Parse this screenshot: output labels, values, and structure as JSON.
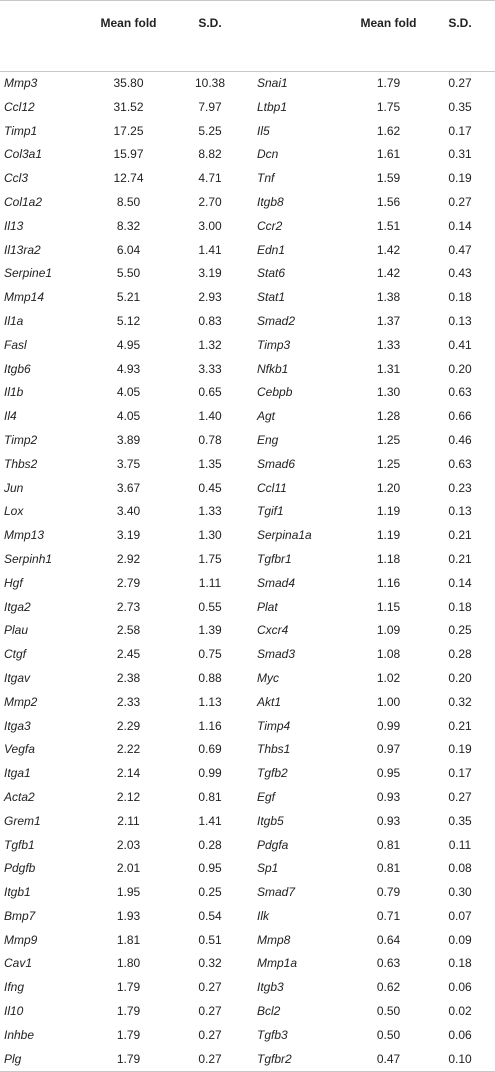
{
  "headers": {
    "col1": "",
    "mean_fold_1": "Mean fold",
    "sd_1": "S.D.",
    "col4": "",
    "mean_fold_2": "Mean fold",
    "sd_2": "S.D."
  },
  "rows": [
    [
      "Mmp3",
      "35.80",
      "10.38",
      "Snai1",
      "1.79",
      "0.27"
    ],
    [
      "Ccl12",
      "31.52",
      "7.97",
      "Ltbp1",
      "1.75",
      "0.35"
    ],
    [
      "Timp1",
      "17.25",
      "5.25",
      "Il5",
      "1.62",
      "0.17"
    ],
    [
      "Col3a1",
      "15.97",
      "8.82",
      "Dcn",
      "1.61",
      "0.31"
    ],
    [
      "Ccl3",
      "12.74",
      "4.71",
      "Tnf",
      "1.59",
      "0.19"
    ],
    [
      "Col1a2",
      "8.50",
      "2.70",
      "Itgb8",
      "1.56",
      "0.27"
    ],
    [
      "Il13",
      "8.32",
      "3.00",
      "Ccr2",
      "1.51",
      "0.14"
    ],
    [
      "Il13ra2",
      "6.04",
      "1.41",
      "Edn1",
      "1.42",
      "0.47"
    ],
    [
      "Serpine1",
      "5.50",
      "3.19",
      "Stat6",
      "1.42",
      "0.43"
    ],
    [
      "Mmp14",
      "5.21",
      "2.93",
      "Stat1",
      "1.38",
      "0.18"
    ],
    [
      "Il1a",
      "5.12",
      "0.83",
      "Smad2",
      "1.37",
      "0.13"
    ],
    [
      "Fasl",
      "4.95",
      "1.32",
      "Timp3",
      "1.33",
      "0.41"
    ],
    [
      "Itgb6",
      "4.93",
      "3.33",
      "Nfkb1",
      "1.31",
      "0.20"
    ],
    [
      "Il1b",
      "4.05",
      "0.65",
      "Cebpb",
      "1.30",
      "0.63"
    ],
    [
      "Il4",
      "4.05",
      "1.40",
      "Agt",
      "1.28",
      "0.66"
    ],
    [
      "Timp2",
      "3.89",
      "0.78",
      "Eng",
      "1.25",
      "0.46"
    ],
    [
      "Thbs2",
      "3.75",
      "1.35",
      "Smad6",
      "1.25",
      "0.63"
    ],
    [
      "Jun",
      "3.67",
      "0.45",
      "Ccl11",
      "1.20",
      "0.23"
    ],
    [
      "Lox",
      "3.40",
      "1.33",
      "Tgif1",
      "1.19",
      "0.13"
    ],
    [
      "Mmp13",
      "3.19",
      "1.30",
      "Serpina1a",
      "1.19",
      "0.21"
    ],
    [
      "Serpinh1",
      "2.92",
      "1.75",
      "Tgfbr1",
      "1.18",
      "0.21"
    ],
    [
      "Hgf",
      "2.79",
      "1.11",
      "Smad4",
      "1.16",
      "0.14"
    ],
    [
      "Itga2",
      "2.73",
      "0.55",
      "Plat",
      "1.15",
      "0.18"
    ],
    [
      "Plau",
      "2.58",
      "1.39",
      "Cxcr4",
      "1.09",
      "0.25"
    ],
    [
      "Ctgf",
      "2.45",
      "0.75",
      "Smad3",
      "1.08",
      "0.28"
    ],
    [
      "Itgav",
      "2.38",
      "0.88",
      "Myc",
      "1.02",
      "0.20"
    ],
    [
      "Mmp2",
      "2.33",
      "1.13",
      "Akt1",
      "1.00",
      "0.32"
    ],
    [
      "Itga3",
      "2.29",
      "1.16",
      "Timp4",
      "0.99",
      "0.21"
    ],
    [
      "Vegfa",
      "2.22",
      "0.69",
      "Thbs1",
      "0.97",
      "0.19"
    ],
    [
      "Itga1",
      "2.14",
      "0.99",
      "Tgfb2",
      "0.95",
      "0.17"
    ],
    [
      "Acta2",
      "2.12",
      "0.81",
      "Egf",
      "0.93",
      "0.27"
    ],
    [
      "Grem1",
      "2.11",
      "1.41",
      "Itgb5",
      "0.93",
      "0.35"
    ],
    [
      "Tgfb1",
      "2.03",
      "0.28",
      "Pdgfa",
      "0.81",
      "0.11"
    ],
    [
      "Pdgfb",
      "2.01",
      "0.95",
      "Sp1",
      "0.81",
      "0.08"
    ],
    [
      "Itgb1",
      "1.95",
      "0.25",
      "Smad7",
      "0.79",
      "0.30"
    ],
    [
      "Bmp7",
      "1.93",
      "0.54",
      "Ilk",
      "0.71",
      "0.07"
    ],
    [
      "Mmp9",
      "1.81",
      "0.51",
      "Mmp8",
      "0.64",
      "0.09"
    ],
    [
      "Cav1",
      "1.80",
      "0.32",
      "Mmp1a",
      "0.63",
      "0.18"
    ],
    [
      "Ifng",
      "1.79",
      "0.27",
      "Itgb3",
      "0.62",
      "0.06"
    ],
    [
      "Il10",
      "1.79",
      "0.27",
      "Bcl2",
      "0.50",
      "0.02"
    ],
    [
      "Inhbe",
      "1.79",
      "0.27",
      "Tgfb3",
      "0.50",
      "0.06"
    ],
    [
      "Plg",
      "1.79",
      "0.27",
      "Tgfbr2",
      "0.47",
      "0.10"
    ]
  ]
}
